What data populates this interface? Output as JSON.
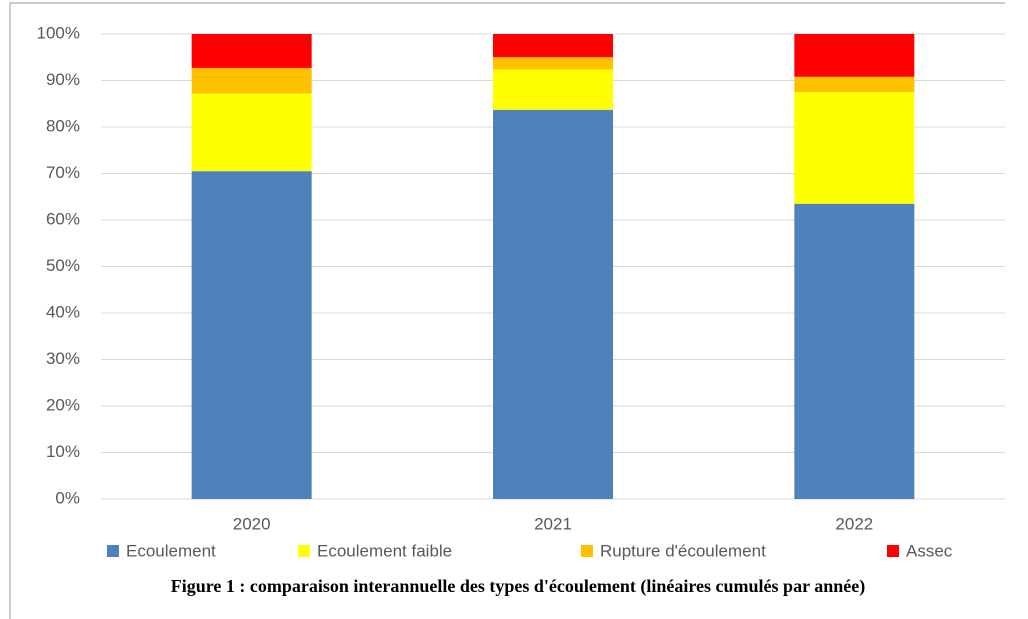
{
  "chart_data": {
    "type": "bar",
    "stacked": true,
    "categories": [
      "2020",
      "2021",
      "2022"
    ],
    "series": [
      {
        "name": "Ecoulement",
        "color": "#4f81bd",
        "values": [
          70.5,
          83.7,
          63.5
        ]
      },
      {
        "name": "Ecoulement faible",
        "color": "#ffff00",
        "values": [
          16.7,
          8.7,
          24
        ]
      },
      {
        "name": "Rupture d'écoulement",
        "color": "#ffc000",
        "values": [
          5.5,
          2.6,
          3.3
        ]
      },
      {
        "name": "Assec",
        "color": "#ff0000",
        "values": [
          7.3,
          5,
          9.2
        ]
      }
    ],
    "ylim": [
      0,
      100
    ],
    "yticks": [
      {
        "value": 0,
        "label": "0%"
      },
      {
        "value": 10,
        "label": "10%"
      },
      {
        "value": 20,
        "label": "20%"
      },
      {
        "value": 30,
        "label": "30%"
      },
      {
        "value": 40,
        "label": "40%"
      },
      {
        "value": 50,
        "label": "50%"
      },
      {
        "value": 60,
        "label": "60%"
      },
      {
        "value": 70,
        "label": "70%"
      },
      {
        "value": 80,
        "label": "80%"
      },
      {
        "value": 90,
        "label": "90%"
      },
      {
        "value": 100,
        "label": "100%"
      }
    ],
    "grid": true,
    "legend": "bottom",
    "caption": "Figure 1 : comparaison interannuelle des types d'écoulement (linéaires cumulés par année)"
  }
}
